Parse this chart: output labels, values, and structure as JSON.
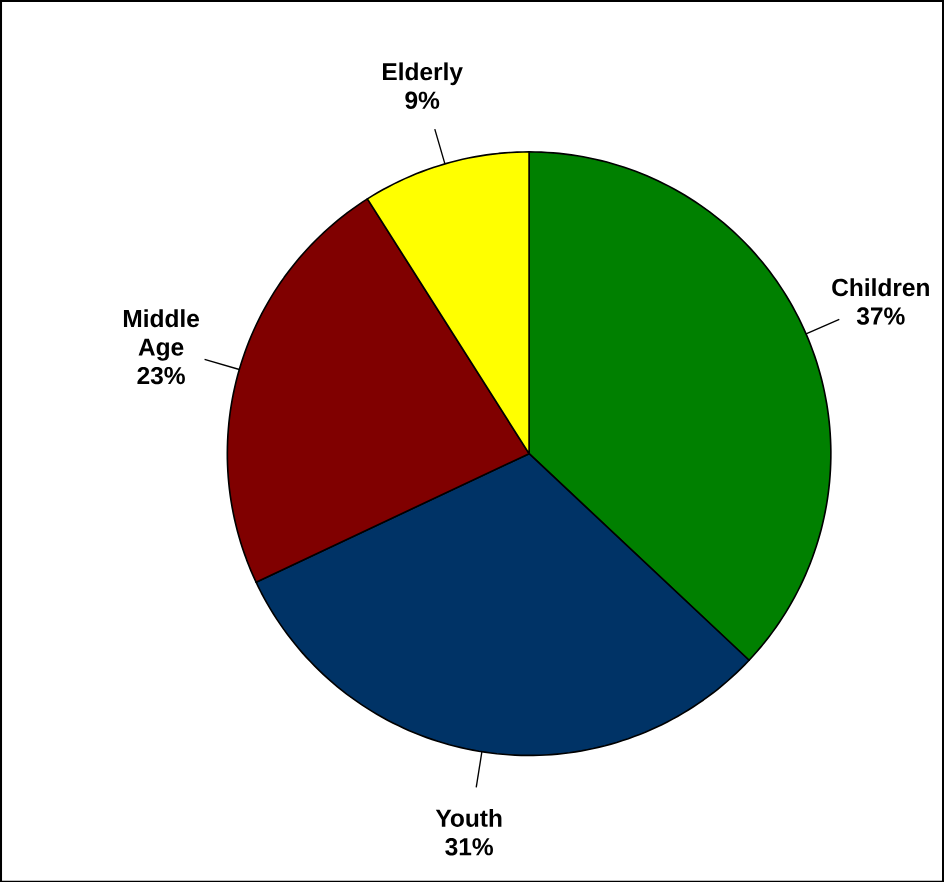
{
  "chart_data": {
    "type": "pie",
    "categories": [
      "Children",
      "Youth",
      "Middle Age",
      "Elderly"
    ],
    "values": [
      37,
      31,
      23,
      9
    ],
    "colors": [
      "#008000",
      "#003366",
      "#800000",
      "#ffff00"
    ],
    "value_labels": [
      "37%",
      "31%",
      "23%",
      "9%"
    ]
  }
}
